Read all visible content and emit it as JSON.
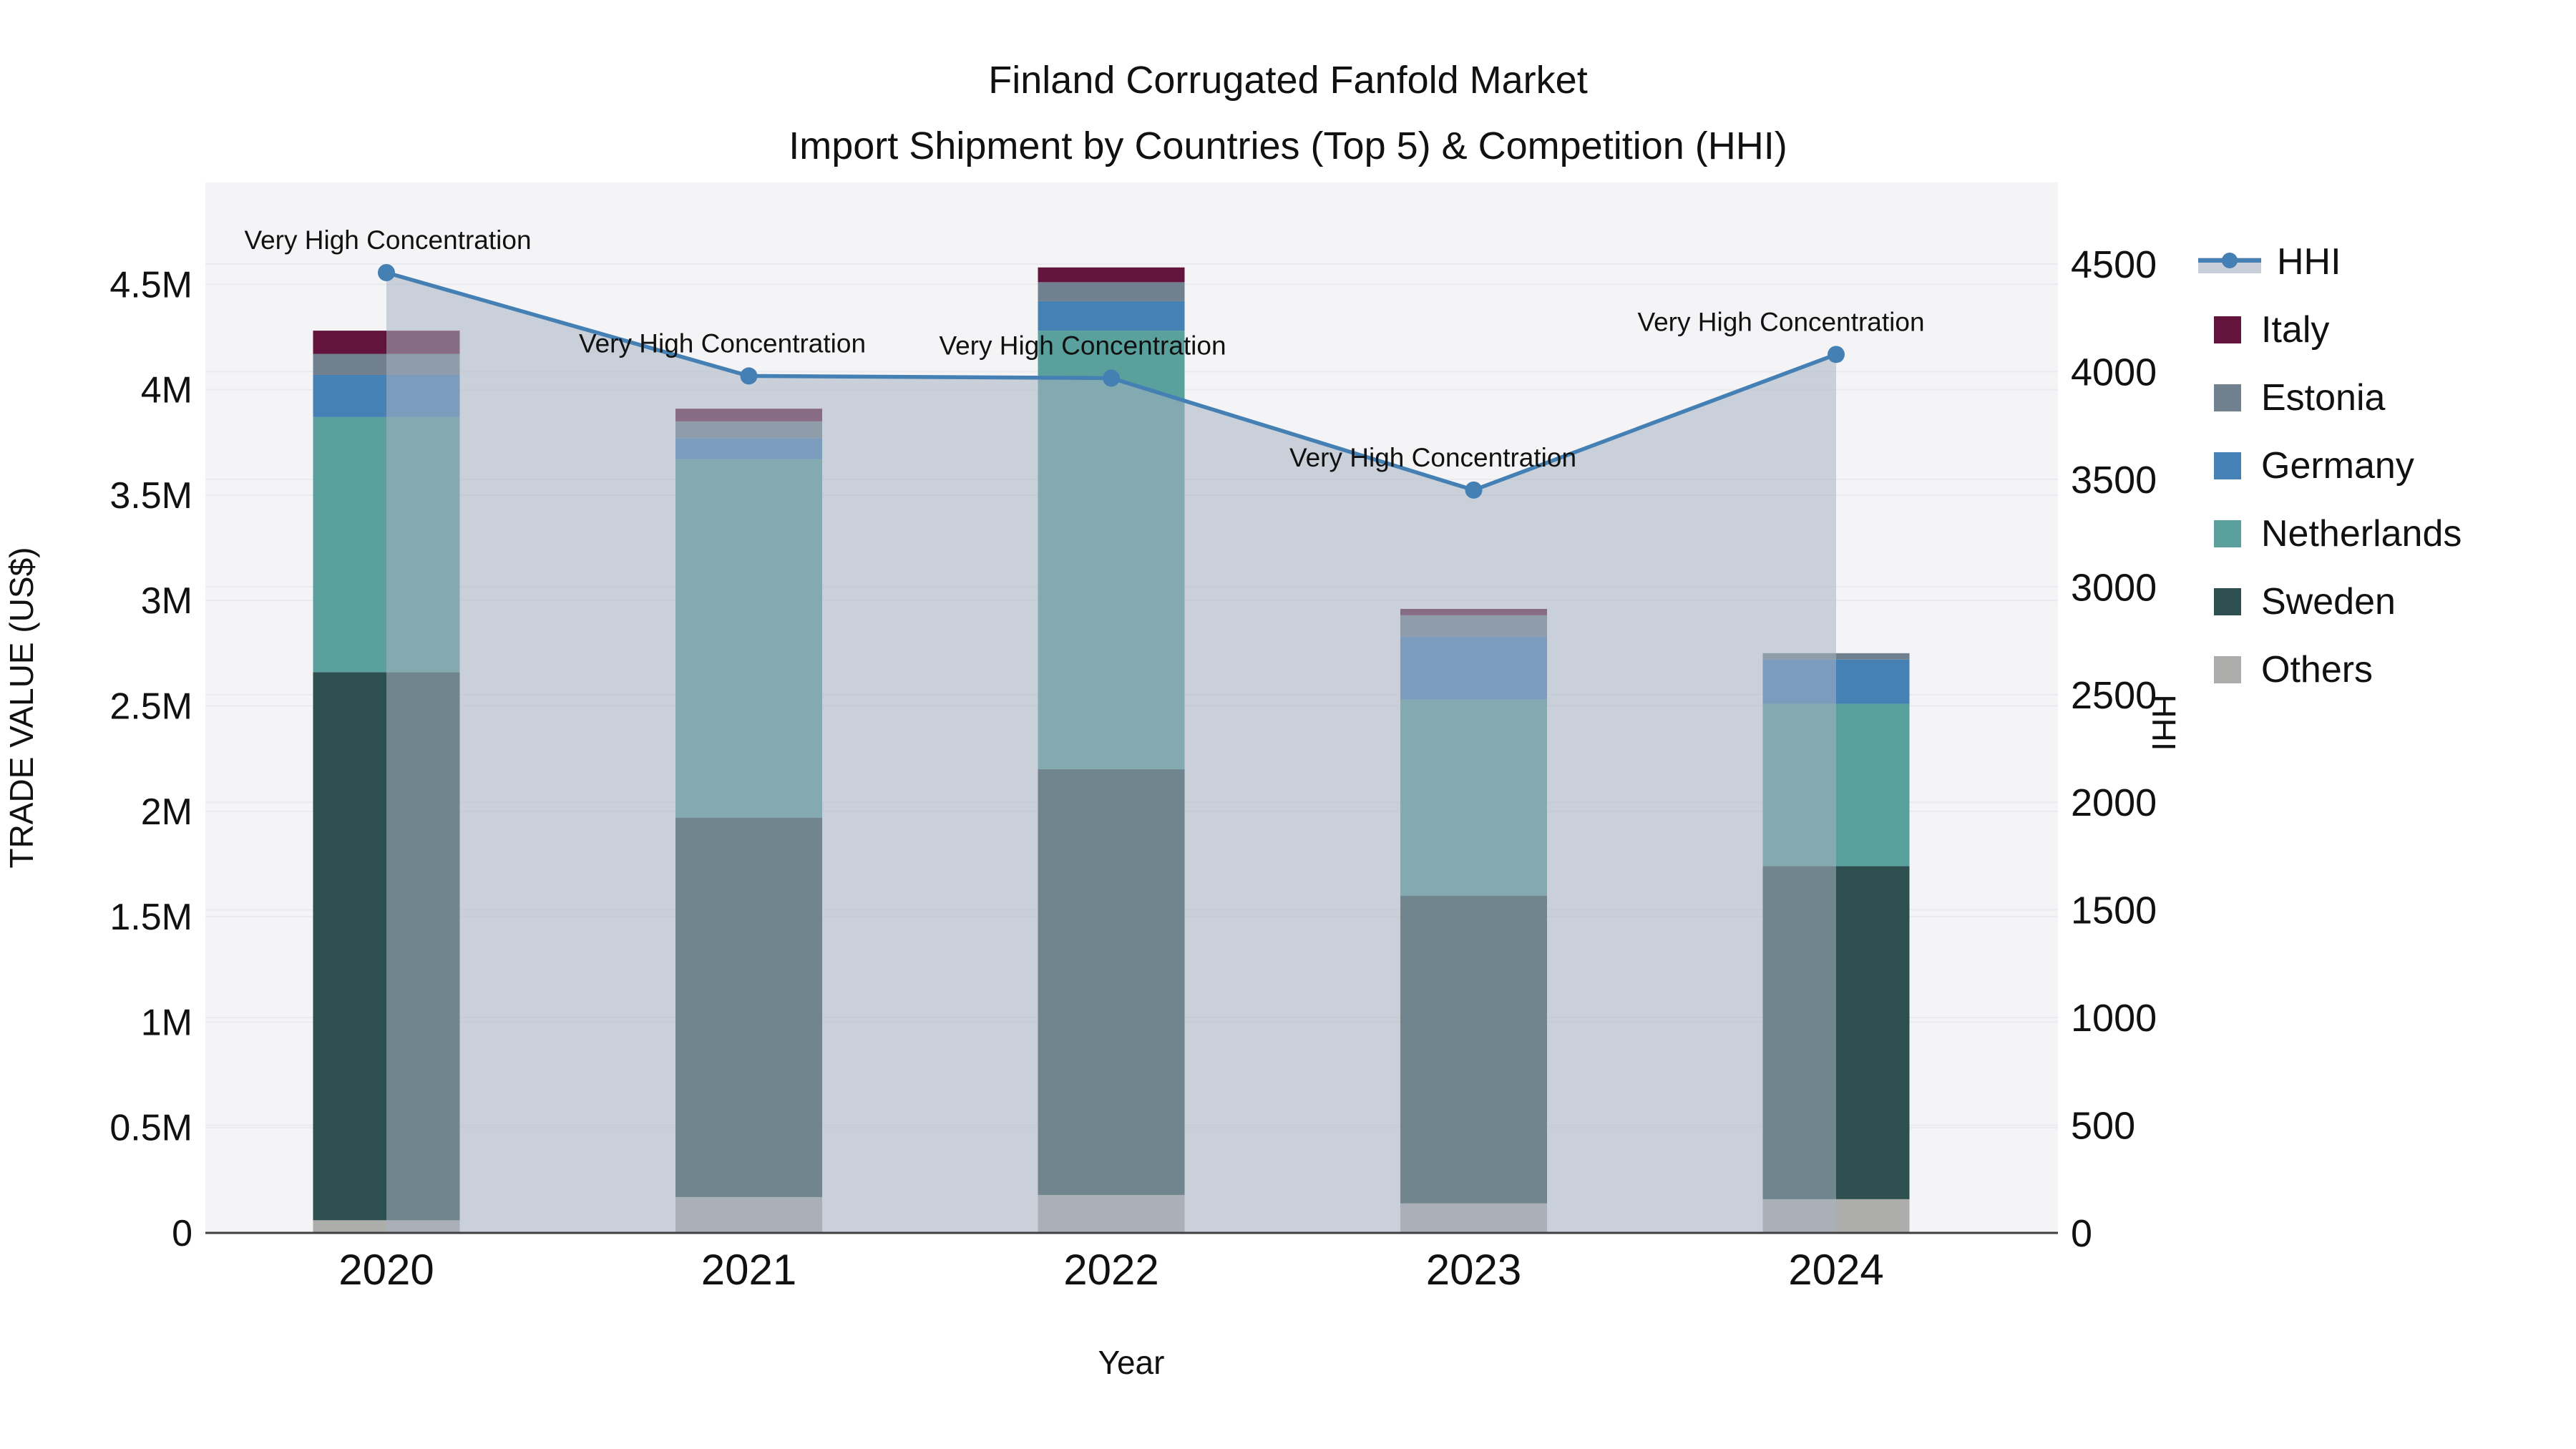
{
  "title": {
    "line1": "Finland Corrugated Fanfold Market",
    "line2": "Import Shipment by Countries (Top 5) & Competition (HHI)"
  },
  "axes": {
    "x_title": "Year",
    "y1_title": "TRADE VALUE (US$)",
    "y2_title": "HHI"
  },
  "legend": {
    "items": [
      {
        "label": "HHI",
        "kind": "line",
        "color": "#4580B4",
        "band": "#c9cfd9"
      },
      {
        "label": "Italy",
        "kind": "swatch",
        "color": "#63143C"
      },
      {
        "label": "Estonia",
        "kind": "swatch",
        "color": "#71808F"
      },
      {
        "label": "Germany",
        "kind": "swatch",
        "color": "#4581B5"
      },
      {
        "label": "Netherlands",
        "kind": "swatch",
        "color": "#5AA19D"
      },
      {
        "label": "Sweden",
        "kind": "swatch",
        "color": "#2E4F4F"
      },
      {
        "label": "Others",
        "kind": "swatch",
        "color": "#ADADAB"
      }
    ]
  },
  "chart_data": {
    "type": "combo-stacked-bar-with-line",
    "title": "Finland Corrugated Fanfold Market — Import Shipment by Countries (Top 5) & Competition (HHI)",
    "categories": [
      "2020",
      "2021",
      "2022",
      "2023",
      "2024"
    ],
    "unit": "M US$",
    "series": [
      {
        "name": "Others",
        "color": "#ADADAB",
        "values": [
          0.06,
          0.17,
          0.18,
          0.14,
          0.16
        ]
      },
      {
        "name": "Sweden",
        "color": "#2E4F4F",
        "values": [
          2.6,
          1.8,
          2.02,
          1.46,
          1.58
        ]
      },
      {
        "name": "Netherlands",
        "color": "#5AA19D",
        "values": [
          1.21,
          1.7,
          2.08,
          0.93,
          0.77
        ]
      },
      {
        "name": "Germany",
        "color": "#4581B5",
        "values": [
          0.2,
          0.1,
          0.14,
          0.3,
          0.21
        ]
      },
      {
        "name": "Estonia",
        "color": "#71808F",
        "values": [
          0.1,
          0.08,
          0.09,
          0.1,
          0.03
        ]
      },
      {
        "name": "Italy",
        "color": "#63143C",
        "values": [
          0.11,
          0.06,
          0.07,
          0.03,
          0.0
        ]
      }
    ],
    "bar_totals": [
      4.28,
      3.91,
      4.58,
      2.96,
      2.75
    ],
    "line_series": {
      "name": "HHI",
      "color": "#4580B4",
      "area_fill": "rgba(168,178,193,0.55)",
      "values": [
        4460,
        3980,
        3970,
        3450,
        4080
      ],
      "annotation_text": "Very High Concentration",
      "annotation_dx": [
        2,
        -37,
        -40,
        -57,
        -77
      ]
    },
    "y1_axis": {
      "label": "TRADE VALUE (US$)",
      "range": [
        0,
        4.98
      ],
      "tick_values": [
        0,
        0.5,
        1,
        1.5,
        2,
        2.5,
        3,
        3.5,
        4,
        4.5
      ],
      "tick_labels": [
        "0",
        "0.5M",
        "1M",
        "1.5M",
        "2M",
        "2.5M",
        "3M",
        "3.5M",
        "4M",
        "4.5M"
      ]
    },
    "y2_axis": {
      "label": "HHI",
      "range": [
        0,
        4875
      ],
      "tick_values": [
        0,
        500,
        1000,
        1500,
        2000,
        2500,
        3000,
        3500,
        4000,
        4500
      ],
      "tick_labels": [
        "0",
        "500",
        "1000",
        "1500",
        "2000",
        "2500",
        "3000",
        "3500",
        "4000",
        "4500"
      ]
    },
    "x_axis": {
      "label": "Year"
    },
    "plot_background": "#F4F4F6",
    "gridline_color": "#E8EAED",
    "grid": true,
    "legend_position": "right"
  }
}
